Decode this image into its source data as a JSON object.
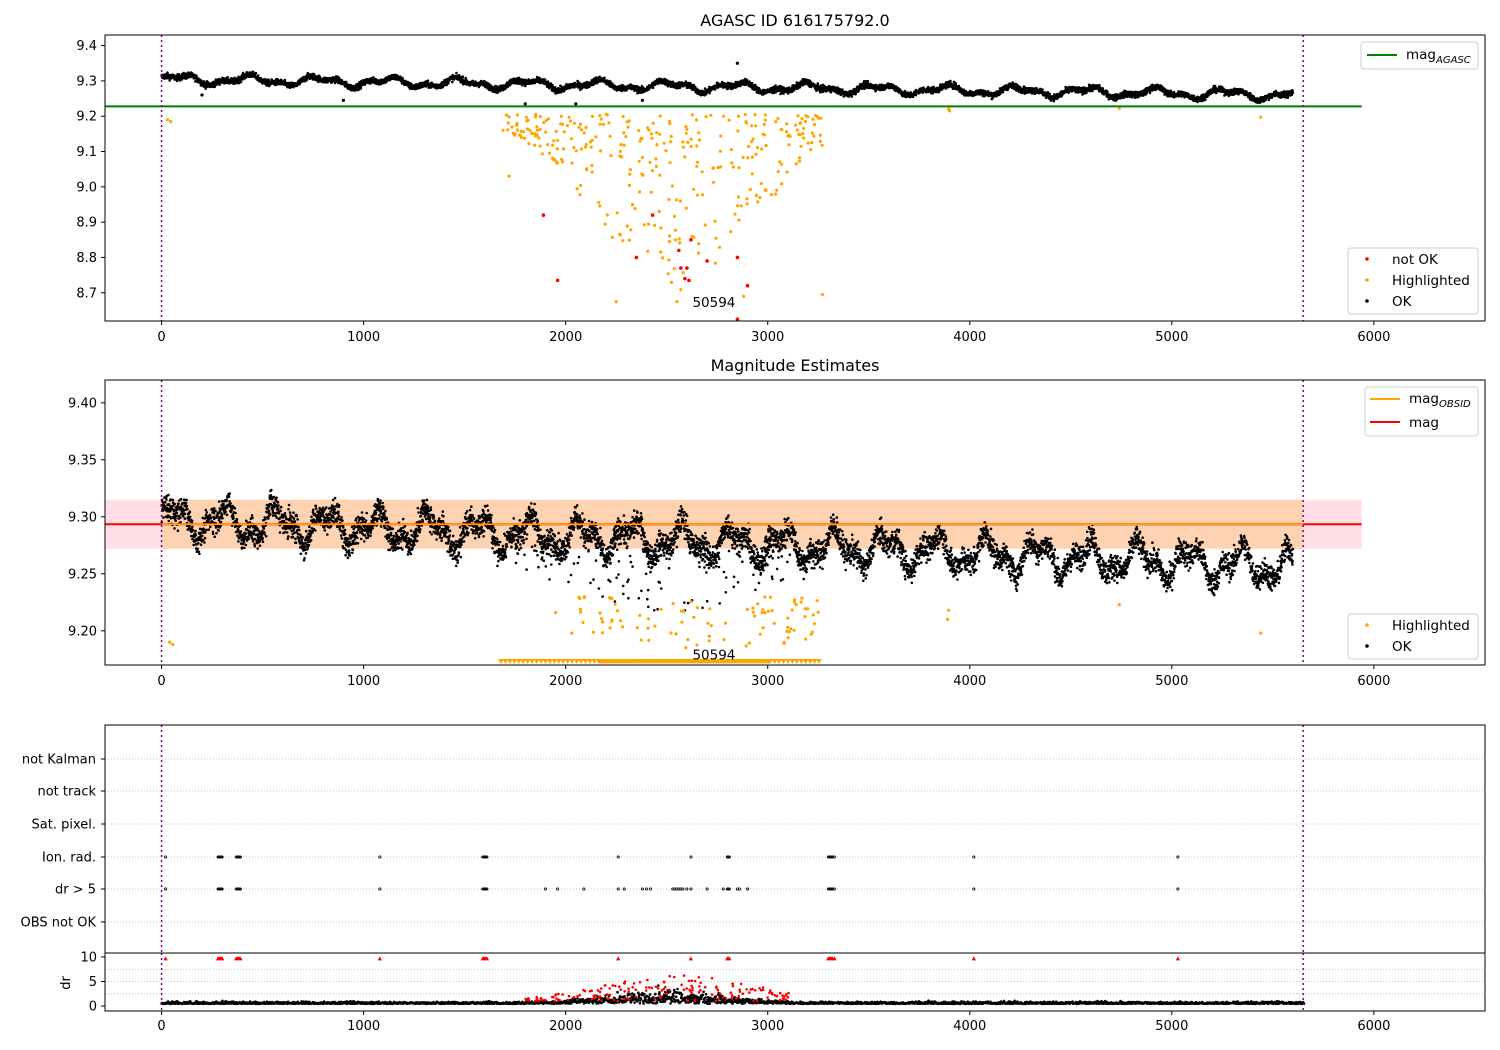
{
  "chart_data": [
    {
      "type": "scatter",
      "title": "AGASC ID 616175792.0",
      "xlim": [
        -280,
        6550
      ],
      "ylim": [
        8.62,
        9.43
      ],
      "xticks": [
        0,
        1000,
        2000,
        3000,
        4000,
        5000,
        6000
      ],
      "yticks": [
        8.7,
        8.8,
        8.9,
        9.0,
        9.1,
        9.2,
        9.3,
        9.4
      ],
      "ytick_labels": [
        "8.7",
        "8.8",
        "8.9",
        "9.0",
        "9.1",
        "9.2",
        "9.3",
        "9.4"
      ],
      "vlines": [
        0,
        5650
      ],
      "hline": {
        "name": "mag_AGASC",
        "y": 9.228,
        "x": [
          -280,
          5940
        ],
        "color": "#008000"
      },
      "annotation": {
        "text": "50594",
        "x": 2840,
        "y": 8.66
      },
      "legend_upper": {
        "position": "upper right",
        "entries": [
          {
            "label": "mag",
            "sub": "AGASC",
            "color": "#008000"
          }
        ]
      },
      "legend_lower": {
        "position": "lower right",
        "entries": [
          {
            "label": "not OK",
            "color": "#ff0000"
          },
          {
            "label": "Highlighted",
            "color": "#ffa500"
          },
          {
            "label": "OK",
            "color": "#000000"
          }
        ]
      },
      "series": [
        {
          "label": "OK",
          "color": "#000000",
          "points": "black band around 9.29, x 0-5650, slowly declining"
        },
        {
          "label": "Highlighted",
          "color": "#ffa500",
          "points": "orange scatter 8.67-9.22, mostly x 1700-3270"
        },
        {
          "label": "not OK",
          "color": "#ff0000",
          "points": [
            [
              1890,
              8.92
            ],
            [
              1960,
              8.735
            ],
            [
              2350,
              8.8
            ],
            [
              2430,
              8.92
            ],
            [
              2560,
              8.82
            ],
            [
              2570,
              8.77
            ],
            [
              2590,
              8.74
            ],
            [
              2600,
              8.77
            ],
            [
              2610,
              8.735
            ],
            [
              2620,
              8.85
            ],
            [
              2700,
              8.79
            ],
            [
              2850,
              8.8
            ],
            [
              2900,
              8.72
            ],
            [
              2850,
              8.625
            ]
          ]
        }
      ]
    },
    {
      "type": "scatter",
      "title": "Magnitude Estimates",
      "xlim": [
        -280,
        6550
      ],
      "ylim": [
        9.17,
        9.42
      ],
      "xticks": [
        0,
        1000,
        2000,
        3000,
        4000,
        5000,
        6000
      ],
      "yticks": [
        9.2,
        9.25,
        9.3,
        9.35,
        9.4
      ],
      "ytick_labels": [
        "9.20",
        "9.25",
        "9.30",
        "9.35",
        "9.40"
      ],
      "vlines": [
        0,
        5650
      ],
      "hline": {
        "name": "mag",
        "y": 9.2935,
        "x": [
          -280,
          5940
        ],
        "color": "#ff0000"
      },
      "band": {
        "y": [
          9.272,
          9.315
        ],
        "x": [
          -280,
          5940
        ],
        "color": "#ffc0cb"
      },
      "obsid_band": {
        "y": [
          9.272,
          9.315
        ],
        "x": [
          0,
          5650
        ],
        "color": "#ffa500"
      },
      "annotation": {
        "text": "50594",
        "x": 2840,
        "y": 9.175
      },
      "legend_upper": {
        "position": "upper right",
        "entries": [
          {
            "label": "mag",
            "sub": "OBSID",
            "color": "#ffa500"
          },
          {
            "label": "mag",
            "sub": "",
            "color": "#ff0000"
          }
        ]
      },
      "legend_lower": {
        "position": "lower right",
        "entries": [
          {
            "label": "Highlighted",
            "color": "#ffa500"
          },
          {
            "label": "OK",
            "color": "#000000"
          }
        ]
      }
    },
    {
      "type": "scatter",
      "title": "",
      "xlim": [
        -280,
        6550
      ],
      "xticks": [
        0,
        1000,
        2000,
        3000,
        4000,
        5000,
        6000
      ],
      "flag_labels": [
        "not Kalman",
        "not track",
        "Sat. pixel.",
        "Ion. rad.",
        "dr > 5",
        "OBS not OK"
      ],
      "flag_points": {
        "Ion. rad.": [
          20,
          280,
          285,
          290,
          295,
          300,
          370,
          375,
          380,
          385,
          390,
          1080,
          1590,
          1595,
          1600,
          1605,
          1610,
          2260,
          2620,
          2800,
          2805,
          2810,
          3300,
          3305,
          3310,
          3315,
          3320,
          3330,
          4020,
          5030
        ],
        "dr > 5": [
          20,
          280,
          285,
          290,
          295,
          300,
          370,
          375,
          380,
          385,
          390,
          1080,
          1590,
          1595,
          1600,
          1605,
          1610,
          1900,
          1960,
          2090,
          2260,
          2290,
          2380,
          2400,
          2420,
          2530,
          2540,
          2550,
          2560,
          2570,
          2580,
          2600,
          2620,
          2700,
          2780,
          2800,
          2805,
          2810,
          2850,
          2860,
          2900,
          3300,
          3305,
          3310,
          3315,
          3320,
          3330,
          4020,
          5030
        ]
      },
      "dr_ylim": [
        -1,
        10.8
      ],
      "dr_yticks": [
        0,
        5,
        10
      ],
      "dr_ylabel": "dr",
      "vlines": [
        0,
        5650
      ],
      "dr_red_series": {
        "color": "#ff0000",
        "description": "red points x 1800-3100, dr 1-7; markers at dr=10 at flagged times"
      }
    }
  ]
}
